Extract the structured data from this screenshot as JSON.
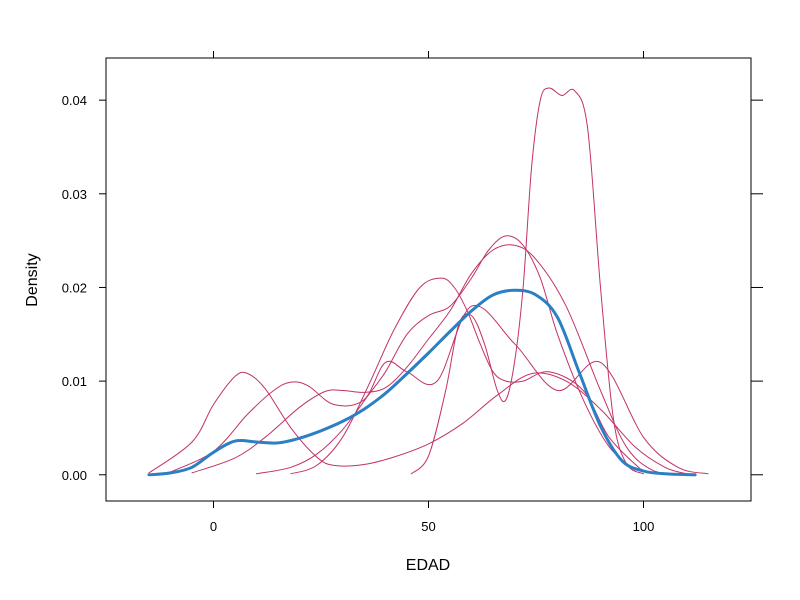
{
  "chart_data": {
    "type": "line",
    "xlabel": "EDAD",
    "ylabel": "Density",
    "xlim": [
      -25,
      125
    ],
    "ylim": [
      -0.0028,
      0.0445
    ],
    "xticks": [
      0,
      50,
      100
    ],
    "xtick_labels": [
      "0",
      "50",
      "100"
    ],
    "yticks": [
      0.0,
      0.01,
      0.02,
      0.03,
      0.04
    ],
    "ytick_labels": [
      "0.00",
      "0.01",
      "0.02",
      "0.03",
      "0.04"
    ],
    "grid": false,
    "series": [
      {
        "role": "subgroup",
        "color": "#c2326a",
        "x": [
          -15,
          -5,
          0,
          5,
          8,
          12,
          18,
          24,
          28,
          35,
          42,
          50,
          58,
          66,
          74,
          82,
          90,
          98,
          105,
          110
        ],
        "y": [
          0.0002,
          0.0035,
          0.0075,
          0.0105,
          0.0108,
          0.0092,
          0.005,
          0.0019,
          0.001,
          0.0011,
          0.0019,
          0.0033,
          0.0055,
          0.0085,
          0.0108,
          0.01,
          0.007,
          0.003,
          0.0008,
          0.0001
        ]
      },
      {
        "role": "subgroup",
        "color": "#c2326a",
        "x": [
          -10,
          0,
          8,
          14,
          18,
          22,
          28,
          35,
          40,
          45,
          52,
          60,
          70,
          80,
          90,
          100,
          108,
          115
        ],
        "y": [
          0.0003,
          0.0025,
          0.0065,
          0.009,
          0.0099,
          0.0095,
          0.0075,
          0.008,
          0.012,
          0.011,
          0.01,
          0.018,
          0.014,
          0.009,
          0.012,
          0.004,
          0.0008,
          0.0001
        ]
      },
      {
        "role": "subgroup",
        "color": "#c2326a",
        "x": [
          -5,
          5,
          12,
          20,
          26,
          30,
          35,
          40,
          45,
          50,
          55,
          60,
          65,
          70,
          75,
          82,
          90,
          96,
          102,
          108
        ],
        "y": [
          0.0002,
          0.0018,
          0.004,
          0.0072,
          0.0089,
          0.009,
          0.0088,
          0.0093,
          0.0115,
          0.0145,
          0.0175,
          0.0215,
          0.024,
          0.0245,
          0.023,
          0.018,
          0.009,
          0.003,
          0.0005,
          0.0001
        ]
      },
      {
        "role": "subgroup",
        "color": "#c2326a",
        "x": [
          10,
          18,
          24,
          30,
          36,
          40,
          45,
          50,
          55,
          60,
          64,
          68,
          72,
          76,
          80,
          86,
          92,
          98
        ],
        "y": [
          0.0001,
          0.0008,
          0.0022,
          0.0048,
          0.0085,
          0.011,
          0.015,
          0.017,
          0.018,
          0.021,
          0.024,
          0.0255,
          0.0245,
          0.021,
          0.015,
          0.008,
          0.003,
          0.0005
        ]
      },
      {
        "role": "subgroup",
        "color": "#c2326a",
        "x": [
          18,
          24,
          30,
          36,
          42,
          48,
          53,
          56,
          59,
          62,
          65,
          68,
          72,
          78,
          86,
          92,
          100
        ],
        "y": [
          0.0001,
          0.001,
          0.004,
          0.0095,
          0.0155,
          0.02,
          0.021,
          0.02,
          0.0175,
          0.014,
          0.011,
          0.01,
          0.01,
          0.011,
          0.009,
          0.004,
          0.0003
        ]
      },
      {
        "role": "subgroup",
        "color": "#c2326a",
        "x": [
          46,
          50,
          54,
          57,
          60,
          63,
          66,
          68,
          70,
          72,
          74,
          76,
          78,
          81,
          84,
          87,
          90,
          93,
          96,
          100
        ],
        "y": [
          0.0001,
          0.002,
          0.009,
          0.016,
          0.017,
          0.014,
          0.009,
          0.008,
          0.012,
          0.02,
          0.033,
          0.04,
          0.0413,
          0.0405,
          0.041,
          0.037,
          0.02,
          0.006,
          0.0012,
          0.0001
        ]
      },
      {
        "role": "overall",
        "color": "#2b7fc4",
        "x": [
          -15,
          -10,
          -5,
          0,
          5,
          10,
          15,
          20,
          25,
          30,
          35,
          40,
          45,
          50,
          55,
          60,
          65,
          70,
          75,
          80,
          85,
          90,
          95,
          100,
          105,
          112
        ],
        "y": [
          0.0,
          0.0002,
          0.0008,
          0.0024,
          0.0036,
          0.0035,
          0.0034,
          0.0039,
          0.0047,
          0.0057,
          0.007,
          0.0087,
          0.0108,
          0.013,
          0.0153,
          0.0175,
          0.0192,
          0.0197,
          0.0192,
          0.0168,
          0.011,
          0.0052,
          0.0015,
          0.0004,
          0.0001,
          0.0
        ]
      }
    ]
  }
}
